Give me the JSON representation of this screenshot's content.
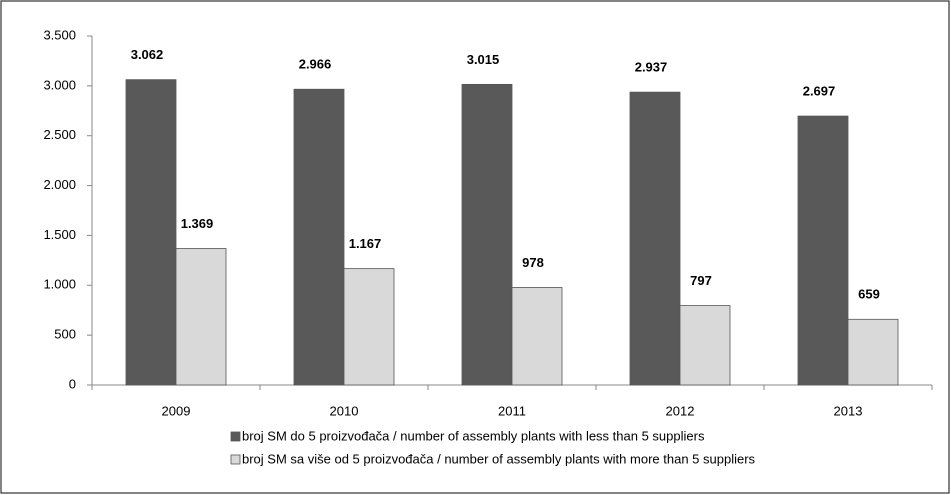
{
  "chart_data": {
    "type": "bar",
    "categories": [
      "2009",
      "2010",
      "2011",
      "2012",
      "2013"
    ],
    "series": [
      {
        "name": "broj SM do 5 proizvođača / number of assembly plants with less than 5 suppliers",
        "color": "#595959",
        "values": [
          3062,
          2966,
          3015,
          2937,
          2697
        ],
        "value_labels": [
          "3.062",
          "2.966",
          "3.015",
          "2.937",
          "2.697"
        ]
      },
      {
        "name": "broj SM sa više od 5 proizvođača / number of assembly plants with more than 5 suppliers",
        "color": "#d9d9d9",
        "values": [
          1369,
          1167,
          978,
          797,
          659
        ],
        "value_labels": [
          "1.369",
          "1.167",
          "978",
          "797",
          "659"
        ]
      }
    ],
    "ylim": [
      0,
      3500
    ],
    "yticks": [
      0,
      500,
      {
        "value": 1000,
        "label": "1.000"
      },
      {
        "value": 1500,
        "label": "1.500"
      },
      {
        "value": 2000,
        "label": "2.000"
      },
      {
        "value": 2500,
        "label": "2.500"
      },
      {
        "value": 3000,
        "label": "3.000"
      },
      {
        "value": 3500,
        "label": "3.500"
      }
    ],
    "grid": false,
    "legend": "bottom"
  }
}
